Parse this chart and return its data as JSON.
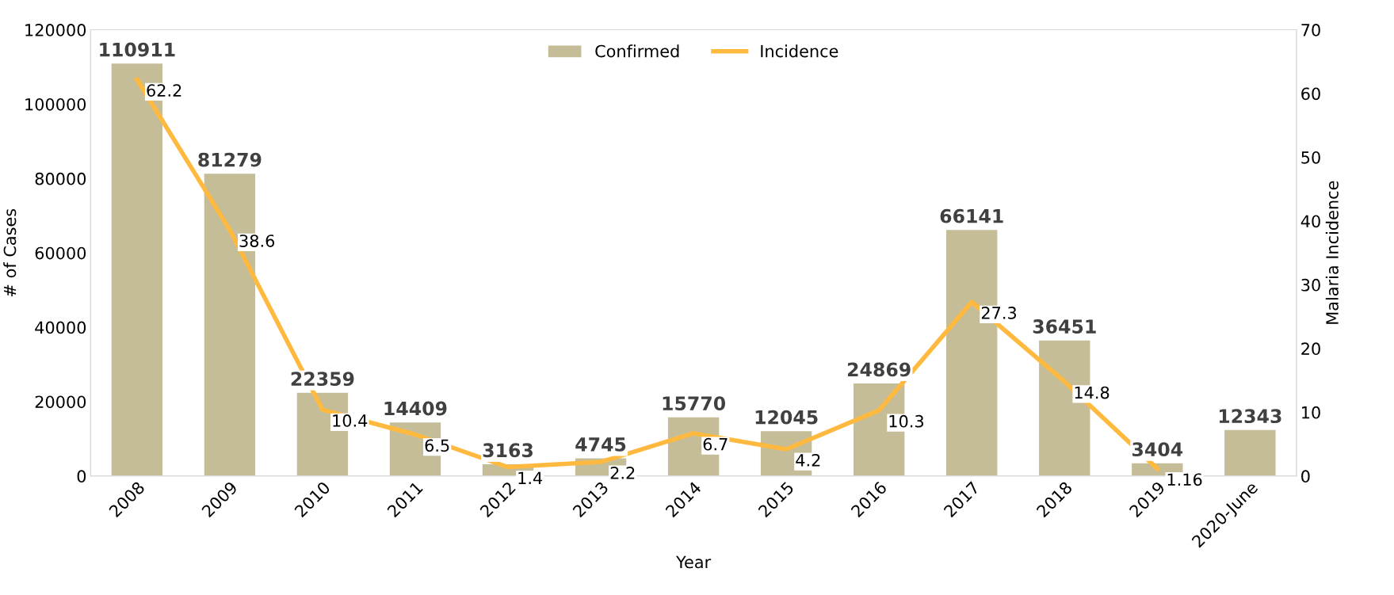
{
  "chart_data": {
    "type": "bar",
    "xlabel": "Year",
    "ylabel": "# of Cases",
    "y2label": "Malaria Incidence",
    "categories": [
      "2008",
      "2009",
      "2010",
      "2011",
      "2012",
      "2013",
      "2014",
      "2015",
      "2016",
      "2017",
      "2018",
      "2019",
      "2020-June"
    ],
    "series": [
      {
        "name": "Confirmed",
        "color": "#c4bd97",
        "values": [
          110911,
          81279,
          22359,
          14409,
          3163,
          4745,
          15770,
          12045,
          24869,
          66141,
          36451,
          3404,
          12343
        ]
      },
      {
        "name": "Incidence",
        "type": "line",
        "axis": "y2",
        "color": "#ffb93f",
        "values": [
          62.2,
          38.6,
          10.4,
          6.5,
          1.4,
          2.2,
          6.7,
          4.2,
          10.3,
          27.3,
          14.8,
          1.16,
          null
        ]
      }
    ],
    "data_labels": true,
    "legend": "top",
    "grid": false,
    "ylim": [
      0,
      120000
    ],
    "yticks": [
      0,
      20000,
      40000,
      60000,
      80000,
      100000,
      120000
    ],
    "y2lim": [
      0,
      70
    ],
    "y2ticks": [
      0,
      10,
      20,
      30,
      40,
      50,
      60,
      70
    ]
  }
}
